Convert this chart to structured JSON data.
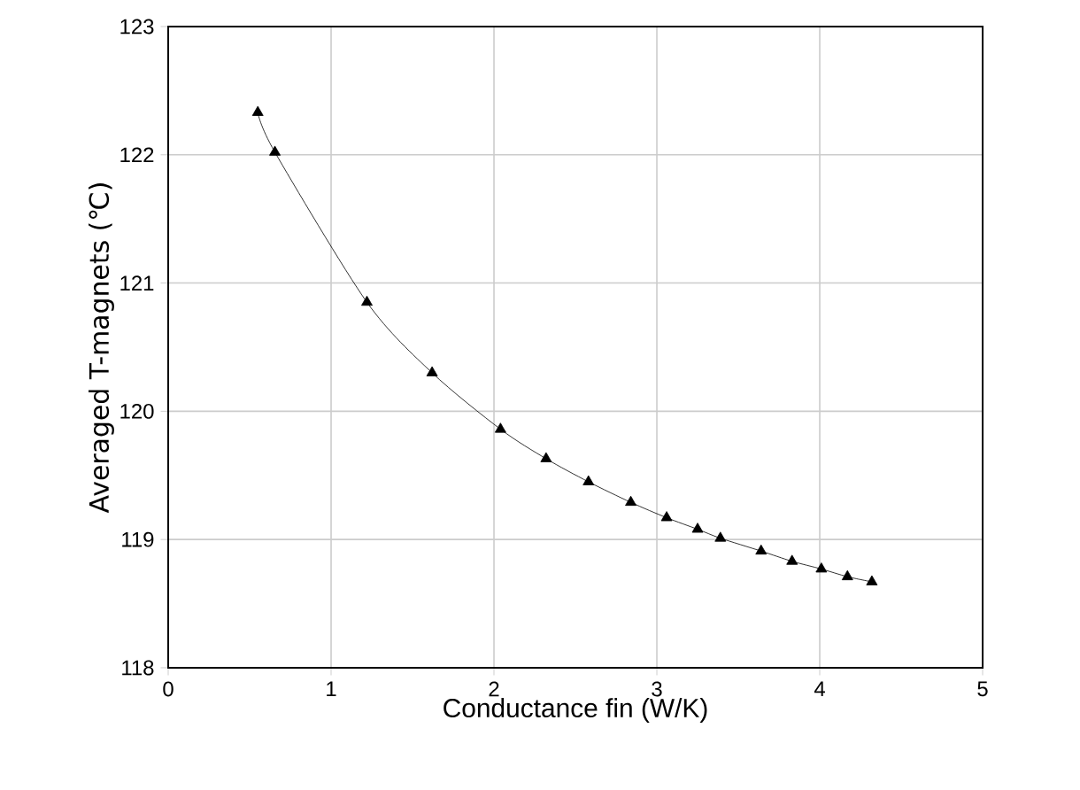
{
  "chart_data": {
    "type": "line",
    "xlabel": "Conductance fin (W/K)",
    "ylabel": "Averaged T-magnets (℃)",
    "x": [
      0.55,
      0.655,
      1.22,
      1.62,
      2.04,
      2.32,
      2.58,
      2.84,
      3.06,
      3.25,
      3.39,
      3.64,
      3.83,
      4.01,
      4.17,
      4.32
    ],
    "series": [
      {
        "color": "#000000",
        "values": [
          122.33,
          122.02,
          120.85,
          120.3,
          119.86,
          119.63,
          119.45,
          119.29,
          119.17,
          119.08,
          119.01,
          118.91,
          118.83,
          118.77,
          118.71,
          118.67
        ]
      }
    ],
    "xlim": [
      0,
      5
    ],
    "ylim": [
      118,
      123
    ],
    "xticks": [
      0,
      1,
      2,
      3,
      4,
      5
    ],
    "yticks": [
      118,
      119,
      120,
      121,
      122,
      123
    ],
    "grid": true,
    "marker": "triangle",
    "line_style": "solid"
  }
}
